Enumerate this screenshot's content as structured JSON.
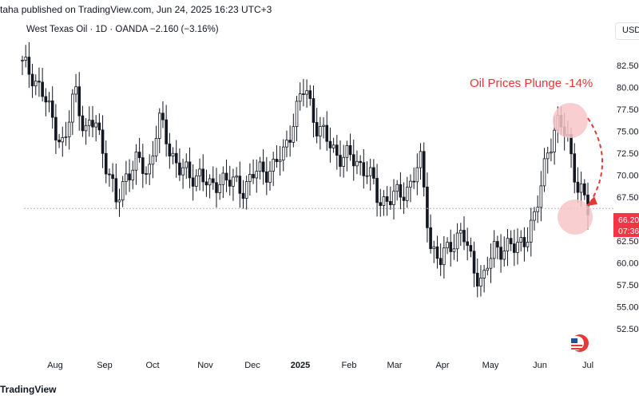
{
  "header": {
    "published_text": "taha published on TradingView.com, Jun 24, 2025 16:23 UTC+3"
  },
  "symbol": {
    "line": "West Texas Oil · 1D · OANDA  −2.160 (−3.16%)"
  },
  "currency_label": "USD",
  "annotation": "Oil Prices Plunge -14%",
  "price_tag": {
    "value": "66.20",
    "time": "07:36",
    "color": "#f23645"
  },
  "footer": {
    "brand": "TradingView"
  },
  "colors": {
    "up": "#131722",
    "down": "#131722",
    "accent": "#e53935",
    "highlight": "#f7c6c8"
  },
  "chart_data": {
    "type": "candlestick",
    "y_ticks": [
      "82.50",
      "80.00",
      "77.50",
      "75.00",
      "72.50",
      "70.00",
      "67.50",
      "65.00",
      "62.50",
      "60.00",
      "57.50",
      "55.00",
      "52.50"
    ],
    "x_ticks": [
      "Aug",
      "Sep",
      "Oct",
      "Nov",
      "Dec",
      "2025",
      "Feb",
      "Mar",
      "Apr",
      "May",
      "Jun",
      "Jul"
    ],
    "ylim": [
      52.5,
      82.5
    ],
    "last_price": 66.2,
    "close_series": [
      {
        "date": "Jul 9",
        "close": 82.5
      },
      {
        "date": "Jul 15",
        "close": 81.5
      },
      {
        "date": "Jul 22",
        "close": 79.0
      },
      {
        "date": "Aug 1",
        "close": 76.0
      },
      {
        "date": "Aug 5",
        "close": 73.0
      },
      {
        "date": "Aug 12",
        "close": 80.0
      },
      {
        "date": "Aug 19",
        "close": 75.0
      },
      {
        "date": "Aug 26",
        "close": 76.0
      },
      {
        "date": "Sep 3",
        "close": 71.5
      },
      {
        "date": "Sep 10",
        "close": 66.5
      },
      {
        "date": "Sep 17",
        "close": 70.5
      },
      {
        "date": "Sep 24",
        "close": 71.5
      },
      {
        "date": "Oct 1",
        "close": 70.0
      },
      {
        "date": "Oct 7",
        "close": 76.5
      },
      {
        "date": "Oct 14",
        "close": 73.0
      },
      {
        "date": "Oct 21",
        "close": 71.0
      },
      {
        "date": "Oct 28",
        "close": 69.5
      },
      {
        "date": "Nov 5",
        "close": 70.5
      },
      {
        "date": "Nov 12",
        "close": 68.0
      },
      {
        "date": "Nov 19",
        "close": 70.0
      },
      {
        "date": "Nov 26",
        "close": 69.0
      },
      {
        "date": "Dec 3",
        "close": 68.5
      },
      {
        "date": "Dec 10",
        "close": 70.0
      },
      {
        "date": "Dec 17",
        "close": 70.5
      },
      {
        "date": "Dec 26",
        "close": 71.0
      },
      {
        "date": "Jan 3",
        "close": 72.5
      },
      {
        "date": "Jan 10",
        "close": 77.0
      },
      {
        "date": "Jan 15",
        "close": 80.0
      },
      {
        "date": "Jan 22",
        "close": 76.0
      },
      {
        "date": "Jan 29",
        "close": 74.0
      },
      {
        "date": "Feb 5",
        "close": 72.5
      },
      {
        "date": "Feb 12",
        "close": 72.0
      },
      {
        "date": "Feb 19",
        "close": 71.5
      },
      {
        "date": "Feb 26",
        "close": 70.5
      },
      {
        "date": "Mar 5",
        "close": 67.0
      },
      {
        "date": "Mar 12",
        "close": 67.5
      },
      {
        "date": "Mar 19",
        "close": 67.5
      },
      {
        "date": "Mar 26",
        "close": 69.0
      },
      {
        "date": "Apr 2",
        "close": 71.5
      },
      {
        "date": "Apr 4",
        "close": 62.0
      },
      {
        "date": "Apr 9",
        "close": 60.0
      },
      {
        "date": "Apr 16",
        "close": 62.5
      },
      {
        "date": "Apr 23",
        "close": 63.5
      },
      {
        "date": "Apr 30",
        "close": 59.5
      },
      {
        "date": "May 6",
        "close": 58.0
      },
      {
        "date": "May 12",
        "close": 61.5
      },
      {
        "date": "May 19",
        "close": 62.0
      },
      {
        "date": "May 26",
        "close": 61.5
      },
      {
        "date": "Jun 2",
        "close": 63.0
      },
      {
        "date": "Jun 9",
        "close": 65.0
      },
      {
        "date": "Jun 13",
        "close": 72.5
      },
      {
        "date": "Jun 18",
        "close": 75.5
      },
      {
        "date": "Jun 20",
        "close": 75.0
      },
      {
        "date": "Jun 23",
        "close": 68.5
      },
      {
        "date": "Jun 24",
        "close": 66.2
      }
    ]
  }
}
